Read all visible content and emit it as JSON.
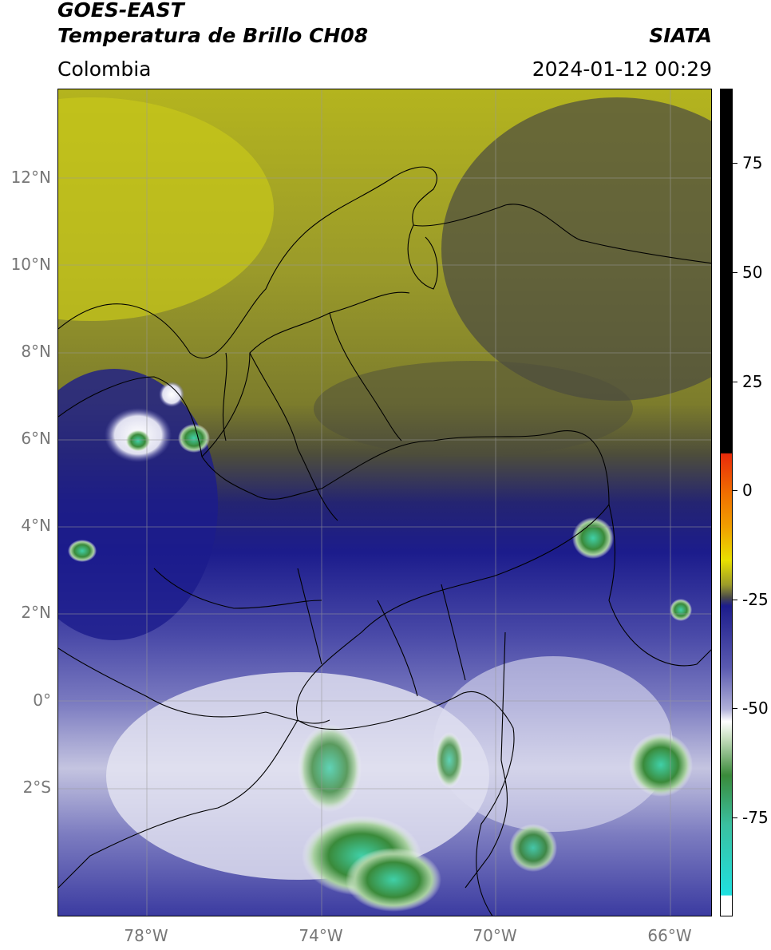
{
  "header": {
    "satellite": "GOES-EAST",
    "product": "Temperatura de Brillo CH08",
    "region": "Colombia",
    "organization": "SIATA",
    "datetime": "2024-01-12 00:29"
  },
  "map": {
    "lat_labels": [
      "12°N",
      "10°N",
      "8°N",
      "6°N",
      "4°N",
      "2°N",
      "0°",
      "2°S"
    ],
    "lon_labels": [
      "78°W",
      "74°W",
      "70°W",
      "66°W"
    ]
  },
  "colorbar": {
    "tick_labels": [
      "75",
      "50",
      "25",
      "0",
      "-25",
      "-50",
      "-75"
    ],
    "colors": {
      "black": "#000000",
      "red": "#e82a0a",
      "orange": "#f0a000",
      "yellow": "#e8e000",
      "olive": "#9a9a2a",
      "gray": "#4a4a4a",
      "navy": "#1c1c8c",
      "blue": "#5a5ab0",
      "light": "#e8e8f4",
      "green": "#3a8a3a",
      "teal": "#3ac0a0",
      "cyan": "#20e0e0"
    }
  }
}
